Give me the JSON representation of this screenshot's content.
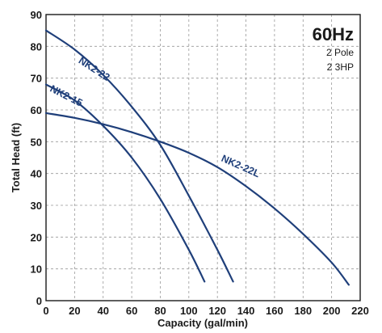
{
  "chart_data": {
    "type": "line",
    "xlabel": "Capacity (gal/min)",
    "ylabel": "Total Head (ft)",
    "xlim": [
      0,
      220
    ],
    "ylim": [
      0,
      90
    ],
    "x_ticks": [
      0,
      20,
      40,
      60,
      80,
      100,
      120,
      140,
      160,
      180,
      200,
      220
    ],
    "y_ticks": [
      0,
      10,
      20,
      30,
      40,
      50,
      60,
      70,
      80,
      90
    ],
    "grid": true,
    "annotation": {
      "frequency": "60Hz",
      "poles": "2 Pole",
      "power": "2 3HP"
    },
    "series": [
      {
        "name": "NK2-22",
        "x": [
          0,
          20,
          40,
          60,
          80,
          100,
          120,
          131
        ],
        "y": [
          85,
          79,
          71,
          61,
          49,
          33,
          16,
          6
        ]
      },
      {
        "name": "NK2-15",
        "x": [
          0,
          20,
          40,
          60,
          80,
          100,
          111
        ],
        "y": [
          68,
          63,
          55,
          45,
          32,
          16,
          6
        ]
      },
      {
        "name": "NK2-22L",
        "x": [
          0,
          20,
          40,
          60,
          80,
          100,
          120,
          140,
          160,
          180,
          200,
          212
        ],
        "y": [
          59,
          57.5,
          55.5,
          53,
          50,
          46.5,
          42,
          36,
          29,
          21,
          12,
          5
        ]
      }
    ],
    "colors": {
      "curve": "#1f3f7a",
      "grid": "#999999",
      "text": "#1a1a1a"
    }
  }
}
